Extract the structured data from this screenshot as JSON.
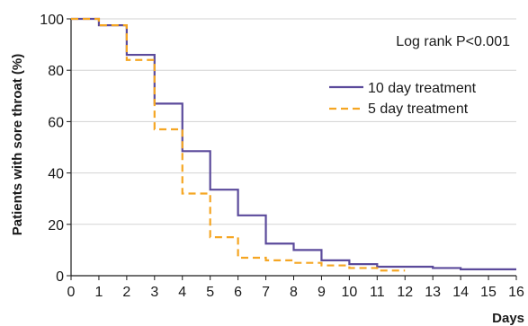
{
  "chart_data": {
    "type": "line",
    "step": true,
    "xlabel": "Days",
    "ylabel": "Patients with sore throat (%)",
    "xlim": [
      0,
      16
    ],
    "ylim": [
      0,
      100
    ],
    "x_ticks": [
      "0",
      "1",
      "2",
      "3",
      "4",
      "5",
      "6",
      "7",
      "8",
      "9",
      "10",
      "11",
      "12",
      "13",
      "14",
      "15",
      "16"
    ],
    "y_ticks": [
      "0",
      "20",
      "40",
      "60",
      "80",
      "100"
    ],
    "annotation": "Log rank P<0.001",
    "legend_position": "upper-right",
    "grid": "horizontal",
    "series": [
      {
        "name": "10 day treatment",
        "color": "#5b4a9b",
        "style": "solid",
        "x": [
          0,
          1,
          2,
          3,
          4,
          5,
          6,
          7,
          8,
          9,
          10,
          11,
          13,
          14,
          16
        ],
        "y": [
          100,
          97.5,
          86,
          67,
          48.5,
          33.5,
          23.5,
          12.5,
          10,
          6,
          4.5,
          3.5,
          3,
          2.5,
          2.5
        ]
      },
      {
        "name": "5 day treatment",
        "color": "#f5a623",
        "style": "dashed",
        "x": [
          0,
          1,
          2,
          3,
          4,
          5,
          6,
          7,
          8,
          9,
          10,
          11,
          12
        ],
        "y": [
          100,
          97.5,
          84,
          57,
          32,
          15,
          7,
          6,
          5,
          4,
          3,
          2,
          2
        ]
      }
    ]
  }
}
